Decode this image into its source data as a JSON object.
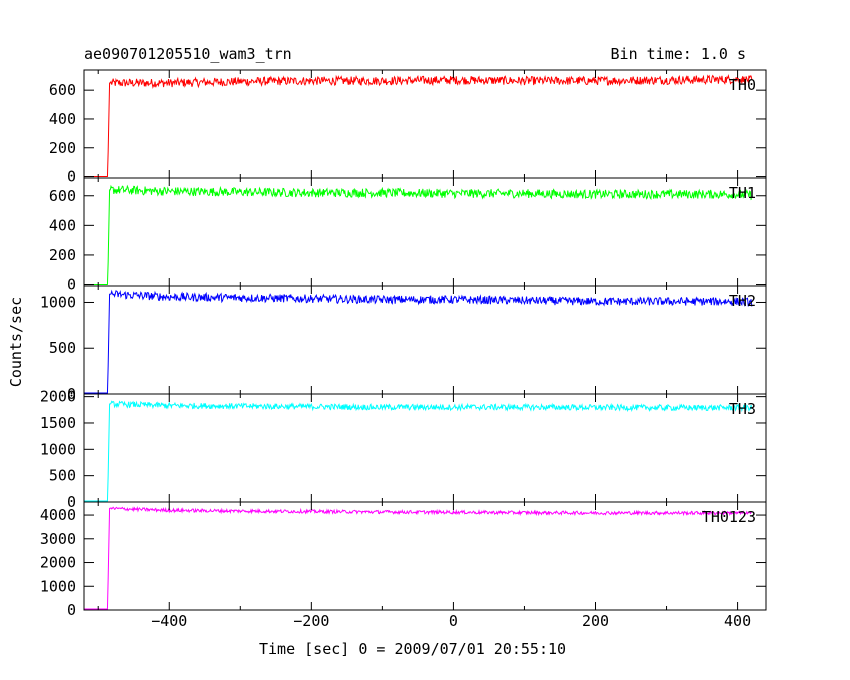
{
  "header": {
    "title": "ae090701205510_wam3_trn",
    "bin_time": "Bin time: 1.0 s"
  },
  "axes": {
    "xlabel": "Time [sec] 0 = 2009/07/01 20:55:10",
    "ylabel": "Counts/sec"
  },
  "chart_data": {
    "type": "line",
    "title": "ae090701205510_wam3_trn",
    "xlabel": "Time [sec] 0 = 2009/07/01 20:55:10",
    "ylabel": "Counts/sec",
    "xlim": [
      -520,
      440
    ],
    "xticks": [
      -400,
      -200,
      0,
      200,
      400
    ],
    "grid": false,
    "note": "Bin time: 1.0 s",
    "onset_x": -485,
    "panels": [
      {
        "name": "TH0",
        "color": "#ff0000",
        "ylim": [
          -10,
          740
        ],
        "yticks": [
          0,
          200,
          400,
          600
        ],
        "series": [
          {
            "name": "TH0",
            "x": [
              -520,
              -487,
              -486,
              -484,
              -400,
              -300,
              -200,
              -100,
              0,
              100,
              200,
              300,
              400,
              420
            ],
            "y": [
              0,
              0,
              170,
              650,
              650,
              660,
              665,
              665,
              670,
              665,
              665,
              670,
              675,
              670
            ]
          }
        ],
        "noise": 30
      },
      {
        "name": "TH1",
        "color": "#00ff00",
        "ylim": [
          -10,
          720
        ],
        "yticks": [
          0,
          200,
          400,
          600
        ],
        "series": [
          {
            "name": "TH1",
            "x": [
              -520,
              -487,
              -486,
              -484,
              -400,
              -300,
              -200,
              -100,
              0,
              100,
              200,
              300,
              400,
              420
            ],
            "y": [
              0,
              0,
              150,
              640,
              630,
              625,
              620,
              620,
              615,
              615,
              610,
              610,
              610,
              605
            ]
          }
        ],
        "noise": 30
      },
      {
        "name": "TH2",
        "color": "#0000ff",
        "ylim": [
          0,
          1180
        ],
        "yticks": [
          0,
          500,
          1000
        ],
        "series": [
          {
            "name": "TH2",
            "x": [
              -520,
              -487,
              -486,
              -484,
              -400,
              -300,
              -200,
              -100,
              0,
              100,
              200,
              300,
              400,
              420
            ],
            "y": [
              0,
              0,
              300,
              1090,
              1060,
              1050,
              1040,
              1030,
              1030,
              1020,
              1010,
              1010,
              1010,
              1000
            ]
          }
        ],
        "noise": 45
      },
      {
        "name": "TH3",
        "color": "#00ffff",
        "ylim": [
          0,
          2050
        ],
        "yticks": [
          0,
          500,
          1000,
          1500,
          2000
        ],
        "series": [
          {
            "name": "TH3",
            "x": [
              -520,
              -487,
              -486,
              -484,
              -400,
              -300,
              -200,
              -100,
              0,
              100,
              200,
              300,
              400,
              420
            ],
            "y": [
              0,
              0,
              500,
              1860,
              1830,
              1820,
              1810,
              1800,
              1800,
              1800,
              1795,
              1790,
              1790,
              1790
            ]
          }
        ],
        "noise": 55
      },
      {
        "name": "TH0123",
        "color": "#ff00ff",
        "ylim": [
          0,
          4550
        ],
        "yticks": [
          0,
          1000,
          2000,
          3000,
          4000
        ],
        "series": [
          {
            "name": "TH0123",
            "x": [
              -520,
              -487,
              -486,
              -484,
              -400,
              -300,
              -200,
              -100,
              0,
              100,
              200,
              300,
              400,
              420
            ],
            "y": [
              0,
              0,
              1300,
              4280,
              4200,
              4170,
              4150,
              4130,
              4120,
              4100,
              4090,
              4090,
              4085,
              4080
            ]
          }
        ],
        "noise": 70
      }
    ]
  }
}
